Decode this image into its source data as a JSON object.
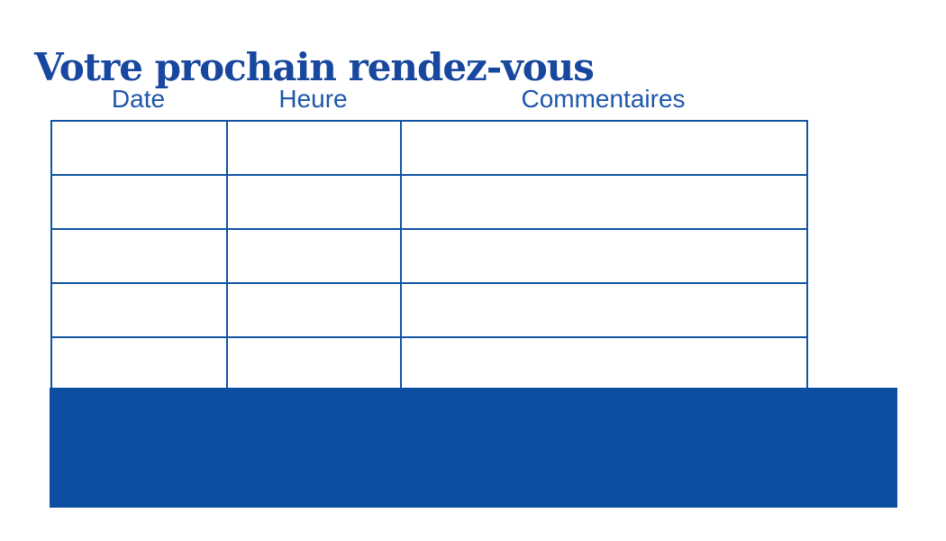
{
  "page": {
    "title": "Votre prochain rendez-vous"
  },
  "table": {
    "headers": [
      "Date",
      "Heure",
      "Commentaires"
    ],
    "column_keys": [
      "date",
      "heure",
      "commentaires"
    ],
    "rows": [
      [
        "",
        "",
        ""
      ],
      [
        "",
        "",
        ""
      ],
      [
        "",
        "",
        ""
      ],
      [
        "",
        "",
        ""
      ],
      [
        "",
        "",
        ""
      ]
    ]
  },
  "banner": {
    "label": ""
  },
  "colors": {
    "background": "#FFFFFF",
    "title_blue": "#17479E",
    "header_blue": "#1D57AC",
    "border_blue": "#1254A3",
    "banner_blue": "#0C4EA2"
  }
}
